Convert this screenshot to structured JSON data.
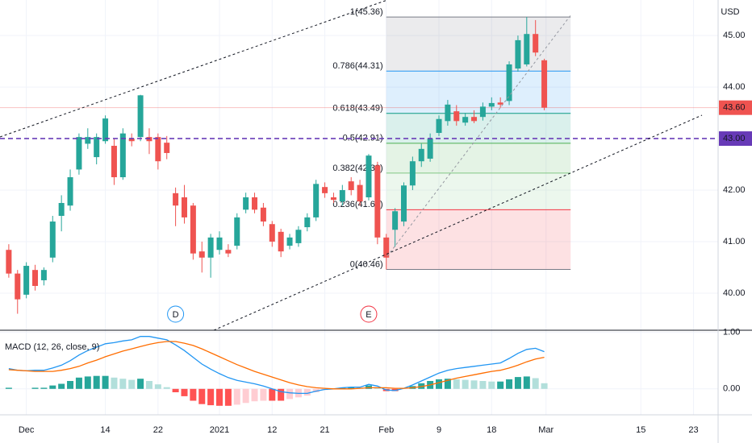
{
  "chart_data": [
    {
      "type": "candlestick",
      "currency": "USD",
      "x": [
        -2,
        -1,
        0,
        1,
        2,
        3,
        4,
        5,
        6,
        7,
        8,
        9,
        10,
        11,
        12,
        13,
        14,
        15,
        16,
        17,
        18,
        19,
        20,
        21,
        22,
        23,
        24,
        25,
        26,
        27,
        28,
        29,
        30,
        31,
        32,
        33,
        34,
        35,
        36,
        37,
        38,
        39,
        40,
        41,
        42,
        43,
        44,
        45,
        46,
        47,
        48,
        49,
        50,
        51,
        52,
        53,
        54,
        55,
        56,
        57,
        58,
        59
      ],
      "open": [
        40.84,
        40.38,
        39.97,
        40.45,
        40.25,
        40.69,
        41.5,
        41.7,
        42.4,
        42.9,
        42.64,
        42.95,
        42.86,
        42.25,
        43.0,
        43.03,
        43.03,
        43.03,
        42.92,
        41.94,
        41.86,
        41.7,
        40.81,
        40.69,
        40.84,
        40.84,
        40.92,
        41.62,
        41.86,
        41.66,
        41.34,
        41.19,
        40.92,
        40.97,
        41.28,
        41.47,
        42.06,
        41.86,
        41.78,
        42.17,
        42.1,
        41.86,
        42.48,
        41.08,
        41.23,
        41.39,
        42.09,
        42.56,
        42.61,
        43.11,
        43.34,
        43.53,
        43.31,
        43.42,
        43.42,
        43.62,
        43.7,
        43.73,
        44.36,
        44.44,
        45.03,
        44.52
      ],
      "high": [
        40.95,
        40.45,
        40.6,
        40.55,
        40.5,
        41.5,
        41.9,
        42.4,
        43.1,
        43.2,
        43.1,
        43.45,
        43.0,
        43.2,
        43.1,
        43.85,
        43.2,
        43.1,
        43.05,
        42.05,
        42.1,
        41.75,
        41.0,
        41.15,
        41.2,
        40.95,
        41.55,
        41.95,
        41.95,
        41.75,
        41.4,
        41.25,
        41.15,
        41.3,
        41.55,
        42.2,
        42.15,
        41.95,
        42.1,
        42.25,
        42.2,
        42.7,
        42.55,
        41.15,
        41.65,
        42.15,
        42.65,
        42.9,
        43.1,
        43.45,
        43.75,
        43.65,
        43.5,
        43.55,
        43.7,
        43.8,
        43.8,
        44.5,
        45.0,
        45.36,
        45.3,
        44.55
      ],
      "low": [
        40.3,
        39.6,
        39.9,
        40.05,
        40.15,
        40.6,
        41.2,
        41.6,
        42.3,
        42.8,
        42.5,
        42.9,
        42.1,
        42.2,
        42.85,
        42.95,
        42.7,
        42.4,
        42.6,
        41.3,
        41.35,
        40.65,
        40.4,
        40.3,
        40.75,
        40.7,
        40.85,
        41.55,
        41.55,
        41.3,
        40.9,
        40.7,
        40.85,
        40.9,
        41.2,
        41.4,
        41.85,
        41.75,
        41.7,
        41.9,
        41.7,
        41.8,
        40.95,
        40.46,
        40.9,
        41.3,
        42.0,
        42.45,
        42.55,
        43.05,
        43.25,
        43.25,
        43.25,
        43.3,
        43.35,
        43.55,
        43.6,
        43.65,
        44.3,
        44.4,
        44.6,
        43.55
      ],
      "close": [
        40.38,
        39.88,
        40.53,
        40.14,
        40.45,
        41.39,
        41.75,
        42.25,
        43.03,
        43.03,
        43.03,
        43.39,
        42.25,
        43.1,
        42.95,
        43.84,
        42.95,
        42.56,
        42.72,
        41.7,
        41.47,
        40.77,
        40.69,
        41.08,
        41.08,
        40.77,
        41.47,
        41.86,
        41.62,
        41.39,
        41.0,
        40.81,
        41.08,
        41.23,
        41.47,
        42.12,
        41.94,
        41.81,
        42.0,
        42.0,
        41.78,
        42.67,
        41.08,
        40.69,
        41.59,
        42.09,
        42.56,
        42.8,
        43.0,
        43.38,
        43.66,
        43.34,
        43.42,
        43.34,
        43.62,
        43.69,
        43.66,
        44.44,
        44.91,
        45.03,
        44.67,
        43.6
      ],
      "up_color": "#26a69a",
      "down_color": "#ef5350",
      "xlim": [
        -3,
        78.8
      ],
      "ylim": [
        39.28,
        45.69
      ],
      "xticks": [
        {
          "value": 0,
          "label": "Dec"
        },
        {
          "value": 9,
          "label": "14"
        },
        {
          "value": 15,
          "label": "22"
        },
        {
          "value": 22,
          "label": "2021"
        },
        {
          "value": 28,
          "label": "12"
        },
        {
          "value": 34,
          "label": "21"
        },
        {
          "value": 41,
          "label": "Feb"
        },
        {
          "value": 47,
          "label": "9"
        },
        {
          "value": 53,
          "label": "18"
        },
        {
          "value": 59.2,
          "label": "Mar"
        },
        {
          "value": 70,
          "label": "15"
        },
        {
          "value": 76,
          "label": "23"
        }
      ],
      "yticks": [
        {
          "value": 45,
          "label": "45.00"
        },
        {
          "value": 44,
          "label": "44.00"
        },
        {
          "value": 42,
          "label": "42.00"
        },
        {
          "value": 41,
          "label": "41.00"
        },
        {
          "value": 40,
          "label": "40.00"
        }
      ],
      "hline": {
        "value": 43,
        "label": "43.00",
        "color": "#673ab7"
      },
      "last_price": {
        "value": 43.6,
        "label": "43.60",
        "color": "#ef5350"
      },
      "fib": {
        "x_start": 41,
        "x_end": 62,
        "levels": [
          {
            "price": 45.36,
            "label": "1(45.36)",
            "color": "#787b86"
          },
          {
            "price": 44.31,
            "label": "0.786(44.31)",
            "color": "#2196f3"
          },
          {
            "price": 43.49,
            "label": "0.618(43.49)",
            "color": "#089981"
          },
          {
            "price": 42.91,
            "label": "0.5(42.91)",
            "color": "#4caf50"
          },
          {
            "price": 42.33,
            "label": "0.382(42.33)",
            "color": "#81c784"
          },
          {
            "price": 41.62,
            "label": "0.236(41.62)",
            "color": "#f23645"
          },
          {
            "price": 40.46,
            "label": "0(40.46)",
            "color": "#787b86"
          }
        ]
      },
      "markers": [
        {
          "text": "D",
          "x": 17,
          "color": "#2196f3"
        },
        {
          "text": "E",
          "x": 39,
          "color": "#f23645"
        }
      ]
    },
    {
      "type": "macd",
      "title": "MACD (12, 26, close, 9)",
      "x": [
        -2,
        -1,
        0,
        1,
        2,
        3,
        4,
        5,
        6,
        7,
        8,
        9,
        10,
        11,
        12,
        13,
        14,
        15,
        16,
        17,
        18,
        19,
        20,
        21,
        22,
        23,
        24,
        25,
        26,
        27,
        28,
        29,
        30,
        31,
        32,
        33,
        34,
        35,
        36,
        37,
        38,
        39,
        40,
        41,
        42,
        43,
        44,
        45,
        46,
        47,
        48,
        49,
        50,
        51,
        52,
        53,
        54,
        55,
        56,
        57,
        58,
        59
      ],
      "xlim": [
        -3,
        78.8
      ],
      "ylim": [
        -0.46,
        1.04
      ],
      "yticks": [
        {
          "value": 1,
          "label": "1.00"
        },
        {
          "value": 0,
          "label": "0.00"
        }
      ],
      "series": [
        {
          "color": "#2196f3",
          "values": [
            0.36,
            0.33,
            0.32,
            0.33,
            0.33,
            0.37,
            0.42,
            0.5,
            0.6,
            0.68,
            0.74,
            0.8,
            0.82,
            0.85,
            0.87,
            0.93,
            0.93,
            0.9,
            0.87,
            0.78,
            0.68,
            0.56,
            0.44,
            0.35,
            0.27,
            0.2,
            0.15,
            0.12,
            0.09,
            0.05,
            0.0,
            -0.05,
            -0.07,
            -0.08,
            -0.08,
            -0.04,
            -0.01,
            0.0,
            0.02,
            0.03,
            0.03,
            0.08,
            0.05,
            -0.02,
            -0.03,
            0.01,
            0.07,
            0.14,
            0.21,
            0.28,
            0.33,
            0.36,
            0.38,
            0.4,
            0.42,
            0.44,
            0.46,
            0.54,
            0.63,
            0.7,
            0.72,
            0.66
          ]
        },
        {
          "color": "#ff6d00",
          "values": [
            0.34,
            0.33,
            0.32,
            0.31,
            0.31,
            0.31,
            0.33,
            0.36,
            0.4,
            0.46,
            0.51,
            0.57,
            0.62,
            0.67,
            0.71,
            0.75,
            0.79,
            0.82,
            0.84,
            0.84,
            0.81,
            0.77,
            0.71,
            0.64,
            0.57,
            0.5,
            0.43,
            0.37,
            0.31,
            0.26,
            0.21,
            0.16,
            0.11,
            0.07,
            0.04,
            0.02,
            0.01,
            0.0,
            0.0,
            0.0,
            0.01,
            0.02,
            0.02,
            0.02,
            0.01,
            0.01,
            0.02,
            0.04,
            0.07,
            0.11,
            0.15,
            0.19,
            0.22,
            0.25,
            0.28,
            0.31,
            0.33,
            0.37,
            0.42,
            0.48,
            0.53,
            0.56
          ]
        }
      ],
      "histogram": {
        "colors": [
          "#26a69a",
          "#b2dfdb",
          "#ff5252",
          "#ffcdd2"
        ],
        "values": [
          0.02,
          0,
          0,
          0.02,
          0.02,
          0.06,
          0.09,
          0.14,
          0.2,
          0.22,
          0.23,
          0.23,
          0.2,
          0.18,
          0.16,
          0.18,
          0.14,
          0.08,
          0.03,
          -0.06,
          -0.13,
          -0.21,
          -0.27,
          -0.29,
          -0.3,
          -0.3,
          -0.28,
          -0.25,
          -0.22,
          -0.21,
          -0.21,
          -0.21,
          -0.18,
          -0.15,
          -0.12,
          -0.06,
          -0.02,
          0,
          0.02,
          0.03,
          0.02,
          0.06,
          0.03,
          -0.04,
          -0.04,
          0,
          0.05,
          0.1,
          0.14,
          0.17,
          0.18,
          0.17,
          0.16,
          0.15,
          0.14,
          0.13,
          0.13,
          0.17,
          0.21,
          0.22,
          0.19,
          0.1
        ]
      }
    }
  ]
}
